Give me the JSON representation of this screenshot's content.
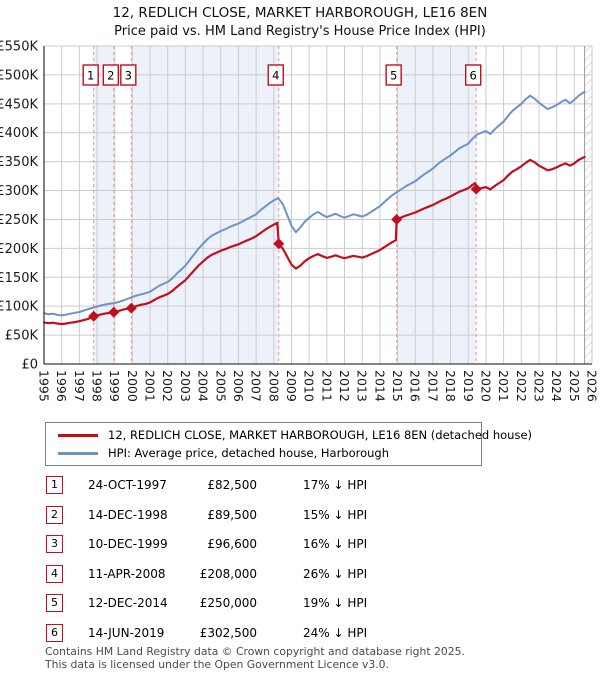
{
  "chart_data": {
    "type": "line",
    "title": "12, REDLICH CLOSE, MARKET HARBOROUGH, LE16 8EN",
    "subtitle": "Price paid vs. HM Land Registry's House Price Index (HPI)",
    "x_range": [
      1995,
      2026
    ],
    "y_range": [
      0,
      550000
    ],
    "x_ticks": [
      1995,
      1996,
      1997,
      1998,
      1999,
      2000,
      2001,
      2002,
      2003,
      2004,
      2005,
      2006,
      2007,
      2008,
      2009,
      2010,
      2011,
      2012,
      2013,
      2014,
      2015,
      2016,
      2017,
      2018,
      2019,
      2020,
      2021,
      2022,
      2023,
      2024,
      2025,
      2026
    ],
    "y_ticks": {
      "values": [
        0,
        50000,
        100000,
        150000,
        200000,
        250000,
        300000,
        350000,
        400000,
        450000,
        500000,
        550000
      ],
      "labels": [
        "£0",
        "£50K",
        "£100K",
        "£150K",
        "£200K",
        "£250K",
        "£300K",
        "£350K",
        "£400K",
        "£450K",
        "£500K",
        "£550K"
      ]
    },
    "grid": true,
    "legend_position": "bottom",
    "colors": {
      "accent_red": "#c00f1f",
      "hpi_blue": "#6d94c5",
      "band": "#edf1fa",
      "dashed": "#f09494",
      "grid": "#cccccc",
      "axis": "#3c3c3c",
      "hatch": "#c8c8c8"
    },
    "series": [
      {
        "name": "12, REDLICH CLOSE, MARKET HARBOROUGH, LE16 8EN (detached house)",
        "color": "#c00f1f",
        "points": [
          [
            1995.0,
            72000
          ],
          [
            1995.25,
            70500
          ],
          [
            1995.5,
            71500
          ],
          [
            1995.75,
            70000
          ],
          [
            1996.0,
            69000
          ],
          [
            1996.25,
            70000
          ],
          [
            1996.5,
            71500
          ],
          [
            1996.75,
            72500
          ],
          [
            1997.0,
            74000
          ],
          [
            1997.25,
            76000
          ],
          [
            1997.5,
            78000
          ],
          [
            1997.81,
            82500
          ],
          [
            1998.0,
            84000
          ],
          [
            1998.25,
            86000
          ],
          [
            1998.5,
            87500
          ],
          [
            1998.75,
            88500
          ],
          [
            1998.95,
            89500
          ],
          [
            1999.25,
            92000
          ],
          [
            1999.5,
            94500
          ],
          [
            1999.94,
            96600
          ],
          [
            2000.25,
            100500
          ],
          [
            2000.5,
            102500
          ],
          [
            2000.75,
            104000
          ],
          [
            2001.0,
            106500
          ],
          [
            2001.25,
            111000
          ],
          [
            2001.5,
            115000
          ],
          [
            2001.75,
            118000
          ],
          [
            2002.0,
            121000
          ],
          [
            2002.25,
            126000
          ],
          [
            2002.5,
            133000
          ],
          [
            2002.75,
            139000
          ],
          [
            2003.0,
            145000
          ],
          [
            2003.25,
            153500
          ],
          [
            2003.5,
            162000
          ],
          [
            2003.75,
            170500
          ],
          [
            2004.0,
            177500
          ],
          [
            2004.25,
            184000
          ],
          [
            2004.5,
            189000
          ],
          [
            2004.75,
            192500
          ],
          [
            2005.0,
            196000
          ],
          [
            2005.25,
            198500
          ],
          [
            2005.5,
            202000
          ],
          [
            2005.75,
            204500
          ],
          [
            2006.0,
            207000
          ],
          [
            2006.25,
            210500
          ],
          [
            2006.5,
            214000
          ],
          [
            2006.75,
            217000
          ],
          [
            2007.0,
            221000
          ],
          [
            2007.25,
            226500
          ],
          [
            2007.5,
            232000
          ],
          [
            2007.75,
            237000
          ],
          [
            2008.0,
            241000
          ],
          [
            2008.2,
            244000
          ],
          [
            2008.28,
            208000
          ],
          [
            2008.5,
            200000
          ],
          [
            2008.75,
            186000
          ],
          [
            2009.0,
            172000
          ],
          [
            2009.25,
            165000
          ],
          [
            2009.5,
            170000
          ],
          [
            2009.75,
            177500
          ],
          [
            2010.0,
            183000
          ],
          [
            2010.25,
            187000
          ],
          [
            2010.5,
            190000
          ],
          [
            2010.75,
            186500
          ],
          [
            2011.0,
            183500
          ],
          [
            2011.25,
            185500
          ],
          [
            2011.5,
            188000
          ],
          [
            2011.75,
            185000
          ],
          [
            2012.0,
            183000
          ],
          [
            2012.25,
            185000
          ],
          [
            2012.5,
            187000
          ],
          [
            2012.75,
            185500
          ],
          [
            2013.0,
            184000
          ],
          [
            2013.25,
            186500
          ],
          [
            2013.5,
            190000
          ],
          [
            2013.75,
            193500
          ],
          [
            2014.0,
            197000
          ],
          [
            2014.25,
            202000
          ],
          [
            2014.5,
            207000
          ],
          [
            2014.75,
            211500
          ],
          [
            2014.9,
            214000
          ],
          [
            2014.95,
            250000
          ],
          [
            2015.25,
            254000
          ],
          [
            2015.5,
            257000
          ],
          [
            2015.75,
            259500
          ],
          [
            2016.0,
            262000
          ],
          [
            2016.25,
            265500
          ],
          [
            2016.5,
            269000
          ],
          [
            2016.75,
            272000
          ],
          [
            2017.0,
            275000
          ],
          [
            2017.25,
            279000
          ],
          [
            2017.5,
            283000
          ],
          [
            2017.75,
            286000
          ],
          [
            2018.0,
            290000
          ],
          [
            2018.25,
            294000
          ],
          [
            2018.5,
            298000
          ],
          [
            2018.75,
            301000
          ],
          [
            2019.0,
            304000
          ],
          [
            2019.25,
            310000
          ],
          [
            2019.4,
            313000
          ],
          [
            2019.45,
            302500
          ],
          [
            2019.75,
            304000
          ],
          [
            2020.0,
            306000
          ],
          [
            2020.25,
            302000
          ],
          [
            2020.5,
            308000
          ],
          [
            2020.75,
            313000
          ],
          [
            2021.0,
            318000
          ],
          [
            2021.25,
            326000
          ],
          [
            2021.5,
            333000
          ],
          [
            2021.75,
            337000
          ],
          [
            2022.0,
            342000
          ],
          [
            2022.25,
            348000
          ],
          [
            2022.5,
            353000
          ],
          [
            2022.75,
            349000
          ],
          [
            2023.0,
            343000
          ],
          [
            2023.25,
            339000
          ],
          [
            2023.5,
            335000
          ],
          [
            2023.75,
            337000
          ],
          [
            2024.0,
            340000
          ],
          [
            2024.25,
            344000
          ],
          [
            2024.5,
            347000
          ],
          [
            2024.75,
            343000
          ],
          [
            2025.0,
            347000
          ],
          [
            2025.25,
            353000
          ],
          [
            2025.58,
            358000
          ]
        ]
      },
      {
        "name": "HPI: Average price, detached house, Harborough",
        "color": "#6d94c5",
        "points": [
          [
            1995.0,
            88000
          ],
          [
            1995.25,
            86000
          ],
          [
            1995.5,
            87000
          ],
          [
            1995.75,
            85000
          ],
          [
            1996.0,
            84000
          ],
          [
            1996.25,
            85500
          ],
          [
            1996.5,
            87000
          ],
          [
            1996.75,
            88500
          ],
          [
            1997.0,
            90000
          ],
          [
            1997.25,
            92500
          ],
          [
            1997.5,
            95000
          ],
          [
            1997.75,
            97000
          ],
          [
            1998.0,
            99500
          ],
          [
            1998.25,
            101500
          ],
          [
            1998.5,
            103000
          ],
          [
            1998.75,
            104500
          ],
          [
            1999.0,
            105500
          ],
          [
            1999.25,
            107500
          ],
          [
            1999.5,
            110000
          ],
          [
            1999.75,
            113000
          ],
          [
            2000.0,
            116000
          ],
          [
            2000.25,
            118500
          ],
          [
            2000.5,
            120500
          ],
          [
            2000.75,
            122500
          ],
          [
            2001.0,
            125000
          ],
          [
            2001.25,
            130000
          ],
          [
            2001.5,
            135000
          ],
          [
            2001.75,
            138500
          ],
          [
            2002.0,
            142000
          ],
          [
            2002.25,
            148000
          ],
          [
            2002.5,
            156000
          ],
          [
            2002.75,
            163000
          ],
          [
            2003.0,
            170000
          ],
          [
            2003.25,
            180000
          ],
          [
            2003.5,
            190000
          ],
          [
            2003.75,
            200000
          ],
          [
            2004.0,
            208000
          ],
          [
            2004.25,
            216000
          ],
          [
            2004.5,
            222000
          ],
          [
            2004.75,
            226000
          ],
          [
            2005.0,
            230000
          ],
          [
            2005.25,
            233000
          ],
          [
            2005.5,
            237000
          ],
          [
            2005.75,
            240000
          ],
          [
            2006.0,
            243000
          ],
          [
            2006.25,
            247000
          ],
          [
            2006.5,
            251000
          ],
          [
            2006.75,
            255000
          ],
          [
            2007.0,
            259000
          ],
          [
            2007.25,
            266000
          ],
          [
            2007.5,
            272000
          ],
          [
            2007.75,
            278000
          ],
          [
            2008.0,
            283000
          ],
          [
            2008.25,
            287000
          ],
          [
            2008.5,
            277000
          ],
          [
            2008.75,
            258000
          ],
          [
            2009.0,
            239000
          ],
          [
            2009.25,
            228000
          ],
          [
            2009.5,
            236000
          ],
          [
            2009.75,
            246000
          ],
          [
            2010.0,
            253000
          ],
          [
            2010.25,
            259000
          ],
          [
            2010.5,
            263000
          ],
          [
            2010.75,
            258000
          ],
          [
            2011.0,
            254000
          ],
          [
            2011.25,
            257000
          ],
          [
            2011.5,
            260000
          ],
          [
            2011.75,
            256000
          ],
          [
            2012.0,
            253000
          ],
          [
            2012.25,
            256000
          ],
          [
            2012.5,
            259000
          ],
          [
            2012.75,
            257000
          ],
          [
            2013.0,
            255000
          ],
          [
            2013.25,
            258000
          ],
          [
            2013.5,
            263000
          ],
          [
            2013.75,
            268000
          ],
          [
            2014.0,
            273000
          ],
          [
            2014.25,
            280000
          ],
          [
            2014.5,
            287000
          ],
          [
            2014.75,
            293000
          ],
          [
            2015.0,
            298000
          ],
          [
            2015.25,
            303000
          ],
          [
            2015.5,
            308000
          ],
          [
            2015.75,
            312000
          ],
          [
            2016.0,
            316000
          ],
          [
            2016.25,
            322000
          ],
          [
            2016.5,
            328000
          ],
          [
            2016.75,
            333000
          ],
          [
            2017.0,
            338000
          ],
          [
            2017.25,
            345000
          ],
          [
            2017.5,
            351000
          ],
          [
            2017.75,
            356000
          ],
          [
            2018.0,
            361000
          ],
          [
            2018.25,
            367000
          ],
          [
            2018.5,
            373000
          ],
          [
            2018.75,
            377000
          ],
          [
            2019.0,
            381000
          ],
          [
            2019.25,
            390000
          ],
          [
            2019.5,
            397000
          ],
          [
            2019.75,
            400000
          ],
          [
            2020.0,
            403000
          ],
          [
            2020.25,
            398000
          ],
          [
            2020.5,
            406000
          ],
          [
            2020.75,
            413000
          ],
          [
            2021.0,
            419000
          ],
          [
            2021.25,
            429000
          ],
          [
            2021.5,
            438000
          ],
          [
            2021.75,
            444000
          ],
          [
            2022.0,
            450000
          ],
          [
            2022.25,
            458000
          ],
          [
            2022.5,
            464000
          ],
          [
            2022.75,
            459000
          ],
          [
            2023.0,
            452000
          ],
          [
            2023.25,
            446000
          ],
          [
            2023.5,
            441000
          ],
          [
            2023.75,
            444000
          ],
          [
            2024.0,
            448000
          ],
          [
            2024.25,
            453000
          ],
          [
            2024.5,
            457000
          ],
          [
            2024.75,
            451000
          ],
          [
            2025.0,
            457000
          ],
          [
            2025.25,
            464000
          ],
          [
            2025.58,
            471000
          ]
        ]
      }
    ],
    "sales": [
      {
        "num": "1",
        "year": 1997.81,
        "price": 82500
      },
      {
        "num": "2",
        "year": 1998.95,
        "price": 89500
      },
      {
        "num": "3",
        "year": 1999.94,
        "price": 96600
      },
      {
        "num": "4",
        "year": 2008.28,
        "price": 208000
      },
      {
        "num": "5",
        "year": 2014.95,
        "price": 250000
      },
      {
        "num": "6",
        "year": 2019.45,
        "price": 302500
      }
    ],
    "ownership_bands": [
      [
        1997.81,
        1998.95
      ],
      [
        1999.94,
        2008.28
      ],
      [
        2014.95,
        2019.45
      ]
    ],
    "future_hatch_start": 2025.58
  },
  "sales_table": {
    "rows": [
      {
        "num": "1",
        "date": "24-OCT-1997",
        "price": "£82,500",
        "vs_hpi": "17% ↓ HPI"
      },
      {
        "num": "2",
        "date": "14-DEC-1998",
        "price": "£89,500",
        "vs_hpi": "15% ↓ HPI"
      },
      {
        "num": "3",
        "date": "10-DEC-1999",
        "price": "£96,600",
        "vs_hpi": "16% ↓ HPI"
      },
      {
        "num": "4",
        "date": "11-APR-2008",
        "price": "£208,000",
        "vs_hpi": "26% ↓ HPI"
      },
      {
        "num": "5",
        "date": "12-DEC-2014",
        "price": "£250,000",
        "vs_hpi": "19% ↓ HPI"
      },
      {
        "num": "6",
        "date": "14-JUN-2019",
        "price": "£302,500",
        "vs_hpi": "24% ↓ HPI"
      }
    ]
  },
  "footer": {
    "line1": "Contains HM Land Registry data © Crown copyright and database right 2025.",
    "line2": "This data is licensed under the Open Government Licence v3.0."
  }
}
